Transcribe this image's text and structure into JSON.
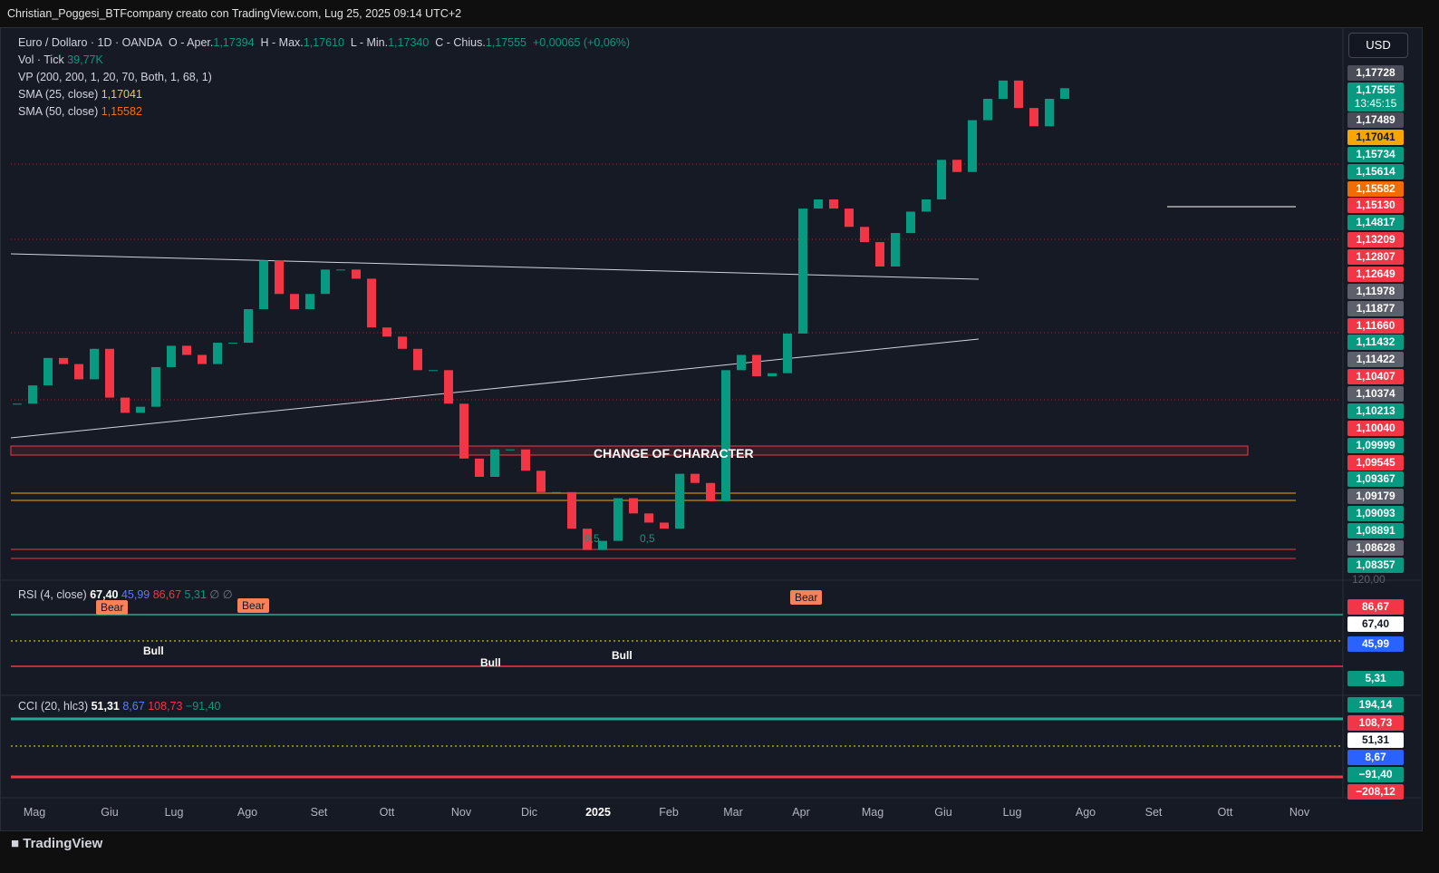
{
  "header": "Christian_Poggesi_BTFcompany creato con TradingView.com, Lug 25, 2025 09:14 UTC+2",
  "currency": "USD",
  "legend": {
    "symbol": "Euro / Dollaro · 1D · OANDA",
    "o_label": "O - Aper.",
    "o": "1,17394",
    "h_label": "H - Max.",
    "h": "1,17610",
    "l_label": "L - Min.",
    "l": "1,17340",
    "c_label": "C - Chius.",
    "c": "1,17555",
    "change": "+0,00065 (+0,06%)"
  },
  "indicators": [
    {
      "name": "Vol · Tick",
      "value": "39,77K",
      "color": "#089981"
    },
    {
      "name": "VP (200, 200, 1, 20, 70, Both, 1, 68, 1)"
    },
    {
      "name": "SMA (25, close)",
      "value": "1,17041",
      "color": "#f7c548"
    },
    {
      "name": "SMA (50, close)",
      "value": "1,15582",
      "color": "#ff6d00"
    }
  ],
  "price_labels": [
    {
      "text": "1,17728",
      "color": "#4a4d57"
    },
    {
      "text": "1,17555",
      "color": "#089981"
    },
    {
      "text": "1,17489",
      "color": "#4a4d57"
    },
    {
      "text": "1,17041",
      "color": "#f7a600"
    },
    {
      "text": "1,15734",
      "color": "#089981"
    },
    {
      "text": "1,15614",
      "color": "#089981"
    },
    {
      "text": "1,15582",
      "color": "#ef6c00"
    },
    {
      "text": "1,15130",
      "color": "#f23645"
    },
    {
      "text": "1,14817",
      "color": "#089981"
    },
    {
      "text": "1,13209",
      "color": "#f23645"
    },
    {
      "text": "1,12807",
      "color": "#f23645"
    },
    {
      "text": "1,12649",
      "color": "#f23645"
    },
    {
      "text": "1,11978",
      "color": "#5d606b"
    },
    {
      "text": "1,11877",
      "color": "#5d606b"
    },
    {
      "text": "1,11660",
      "color": "#f23645"
    },
    {
      "text": "1,11432",
      "color": "#089981"
    },
    {
      "text": "1,11422",
      "color": "#5d606b"
    },
    {
      "text": "1,10407",
      "color": "#f23645"
    },
    {
      "text": "1,10374",
      "color": "#5d606b"
    },
    {
      "text": "1,10213",
      "color": "#089981"
    },
    {
      "text": "1,10040",
      "color": "#f23645"
    },
    {
      "text": "1,09999",
      "color": "#089981"
    },
    {
      "text": "1,09545",
      "color": "#f23645"
    },
    {
      "text": "1,09367",
      "color": "#089981"
    },
    {
      "text": "1,09179",
      "color": "#5d606b"
    },
    {
      "text": "1,09093",
      "color": "#089981"
    },
    {
      "text": "1,08891",
      "color": "#089981"
    },
    {
      "text": "1,08628",
      "color": "#5d606b"
    },
    {
      "text": "1,08357",
      "color": "#089981"
    }
  ],
  "countdown": "13:45:15",
  "price_axis_extra": "120,00",
  "annotations": {
    "choch": "CHANGE OF CHARACTER",
    "bear": [
      "Bear",
      "Bear",
      "Bear"
    ],
    "bull": [
      "Bull",
      "Bull",
      "Bull"
    ],
    "fib": [
      "0,5",
      "0,5"
    ]
  },
  "rsi": {
    "name": "RSI (4, close)",
    "values": [
      {
        "text": "67,40",
        "color": "#ffffff"
      },
      {
        "text": "45,99",
        "color": "#5b7cfa"
      },
      {
        "text": "86,67",
        "color": "#f23645"
      },
      {
        "text": "5,31",
        "color": "#089981"
      },
      {
        "text": "∅",
        "color": "#787b86"
      },
      {
        "text": "∅",
        "color": "#787b86"
      }
    ],
    "labels": [
      {
        "text": "86,67",
        "color": "#f23645",
        "fg": "#fff"
      },
      {
        "text": "67,40",
        "color": "#ffffff",
        "fg": "#131722"
      },
      {
        "text": "45,99",
        "color": "#2962ff",
        "fg": "#fff"
      },
      {
        "text": "5,31",
        "color": "#089981",
        "fg": "#fff"
      }
    ]
  },
  "cci": {
    "name": "CCI (20, hlc3)",
    "values": [
      {
        "text": "51,31",
        "color": "#ffffff"
      },
      {
        "text": "8,67",
        "color": "#5b7cfa"
      },
      {
        "text": "108,73",
        "color": "#f23645"
      },
      {
        "text": "−91,40",
        "color": "#089981"
      }
    ],
    "labels": [
      {
        "text": "194,14",
        "color": "#089981",
        "fg": "#fff"
      },
      {
        "text": "108,73",
        "color": "#f23645",
        "fg": "#fff"
      },
      {
        "text": "51,31",
        "color": "#ffffff",
        "fg": "#131722"
      },
      {
        "text": "8,67",
        "color": "#2962ff",
        "fg": "#fff"
      },
      {
        "text": "−91,40",
        "color": "#089981",
        "fg": "#fff"
      },
      {
        "text": "−208,12",
        "color": "#f23645",
        "fg": "#fff"
      }
    ]
  },
  "time_axis": [
    "Mag",
    "Giu",
    "Lug",
    "Ago",
    "Set",
    "Ott",
    "Nov",
    "Dic",
    "2025",
    "Feb",
    "Mar",
    "Apr",
    "Mag",
    "Giu",
    "Lug",
    "Ago",
    "Set",
    "Ott",
    "Nov"
  ],
  "footer": "TradingView",
  "candles": {
    "ylim": [
      1.0147,
      1.1955
    ],
    "up_color": "#089981",
    "down_color": "#f23645",
    "closes": [
      1.072,
      1.078,
      1.087,
      1.085,
      1.08,
      1.09,
      1.074,
      1.069,
      1.071,
      1.084,
      1.091,
      1.088,
      1.085,
      1.092,
      1.092,
      1.103,
      1.119,
      1.108,
      1.103,
      1.108,
      1.116,
      1.116,
      1.113,
      1.097,
      1.094,
      1.09,
      1.083,
      1.083,
      1.072,
      1.054,
      1.048,
      1.057,
      1.057,
      1.05,
      1.043,
      1.043,
      1.031,
      1.024,
      1.027,
      1.041,
      1.036,
      1.033,
      1.031,
      1.049,
      1.046,
      1.04,
      1.083,
      1.088,
      1.081,
      1.082,
      1.095,
      1.136,
      1.139,
      1.136,
      1.13,
      1.125,
      1.117,
      1.128,
      1.135,
      1.139,
      1.152,
      1.148,
      1.165,
      1.172,
      1.178,
      1.169,
      1.163,
      1.172,
      1.1755
    ]
  }
}
